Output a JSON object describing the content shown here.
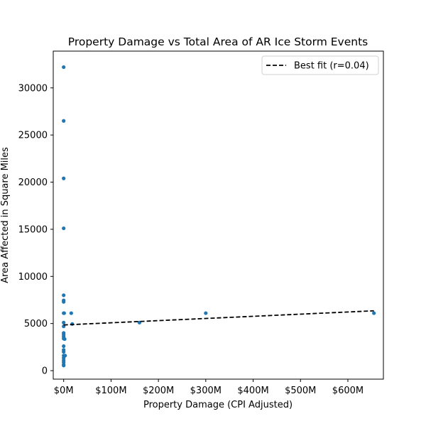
{
  "chart_data": {
    "type": "scatter",
    "title": "Property Damage vs Total Area of AR Ice Storm Events",
    "xlabel": "Property Damage (CPI Adjusted)",
    "ylabel": "Area Affected in Square Miles",
    "xlim": [
      -22,
      675
    ],
    "ylim": [
      -900,
      33900
    ],
    "x_ticks": [
      0,
      100,
      200,
      300,
      400,
      500,
      600
    ],
    "x_tick_labels": [
      "$0M",
      "$100M",
      "$200M",
      "$300M",
      "$400M",
      "$500M",
      "$600M"
    ],
    "y_ticks": [
      0,
      5000,
      10000,
      15000,
      20000,
      25000,
      30000
    ],
    "y_tick_labels": [
      "0",
      "5000",
      "10000",
      "15000",
      "20000",
      "25000",
      "30000"
    ],
    "x_units": "millions USD",
    "grid": false,
    "legend_position": "upper right",
    "point_color": "#1f77b4",
    "fit_color": "#000000",
    "points": [
      {
        "x": 0,
        "y": 32200
      },
      {
        "x": 0,
        "y": 26500
      },
      {
        "x": 0,
        "y": 20400
      },
      {
        "x": 0,
        "y": 15100
      },
      {
        "x": 0,
        "y": 8000
      },
      {
        "x": 0,
        "y": 7450
      },
      {
        "x": 0,
        "y": 7300
      },
      {
        "x": 0,
        "y": 6100
      },
      {
        "x": 1,
        "y": 6100
      },
      {
        "x": 16,
        "y": 6100
      },
      {
        "x": 0,
        "y": 5100
      },
      {
        "x": 18,
        "y": 4950
      },
      {
        "x": 0,
        "y": 4700
      },
      {
        "x": 0,
        "y": 4000
      },
      {
        "x": 0,
        "y": 3800
      },
      {
        "x": 0,
        "y": 3600
      },
      {
        "x": 0,
        "y": 3400
      },
      {
        "x": 2,
        "y": 3350
      },
      {
        "x": 0,
        "y": 2600
      },
      {
        "x": 0,
        "y": 2200
      },
      {
        "x": 0,
        "y": 2000
      },
      {
        "x": 0,
        "y": 1600
      },
      {
        "x": 3,
        "y": 1600
      },
      {
        "x": 0,
        "y": 1350
      },
      {
        "x": 0,
        "y": 1100
      },
      {
        "x": 0,
        "y": 900
      },
      {
        "x": 0,
        "y": 650
      },
      {
        "x": 0,
        "y": 550
      },
      {
        "x": 160,
        "y": 5100
      },
      {
        "x": 300,
        "y": 6100
      },
      {
        "x": 655,
        "y": 6100
      }
    ],
    "fit_line": {
      "label": "Best fit (r=0.04)",
      "x": [
        0,
        655
      ],
      "y": [
        4850,
        6350
      ]
    }
  }
}
